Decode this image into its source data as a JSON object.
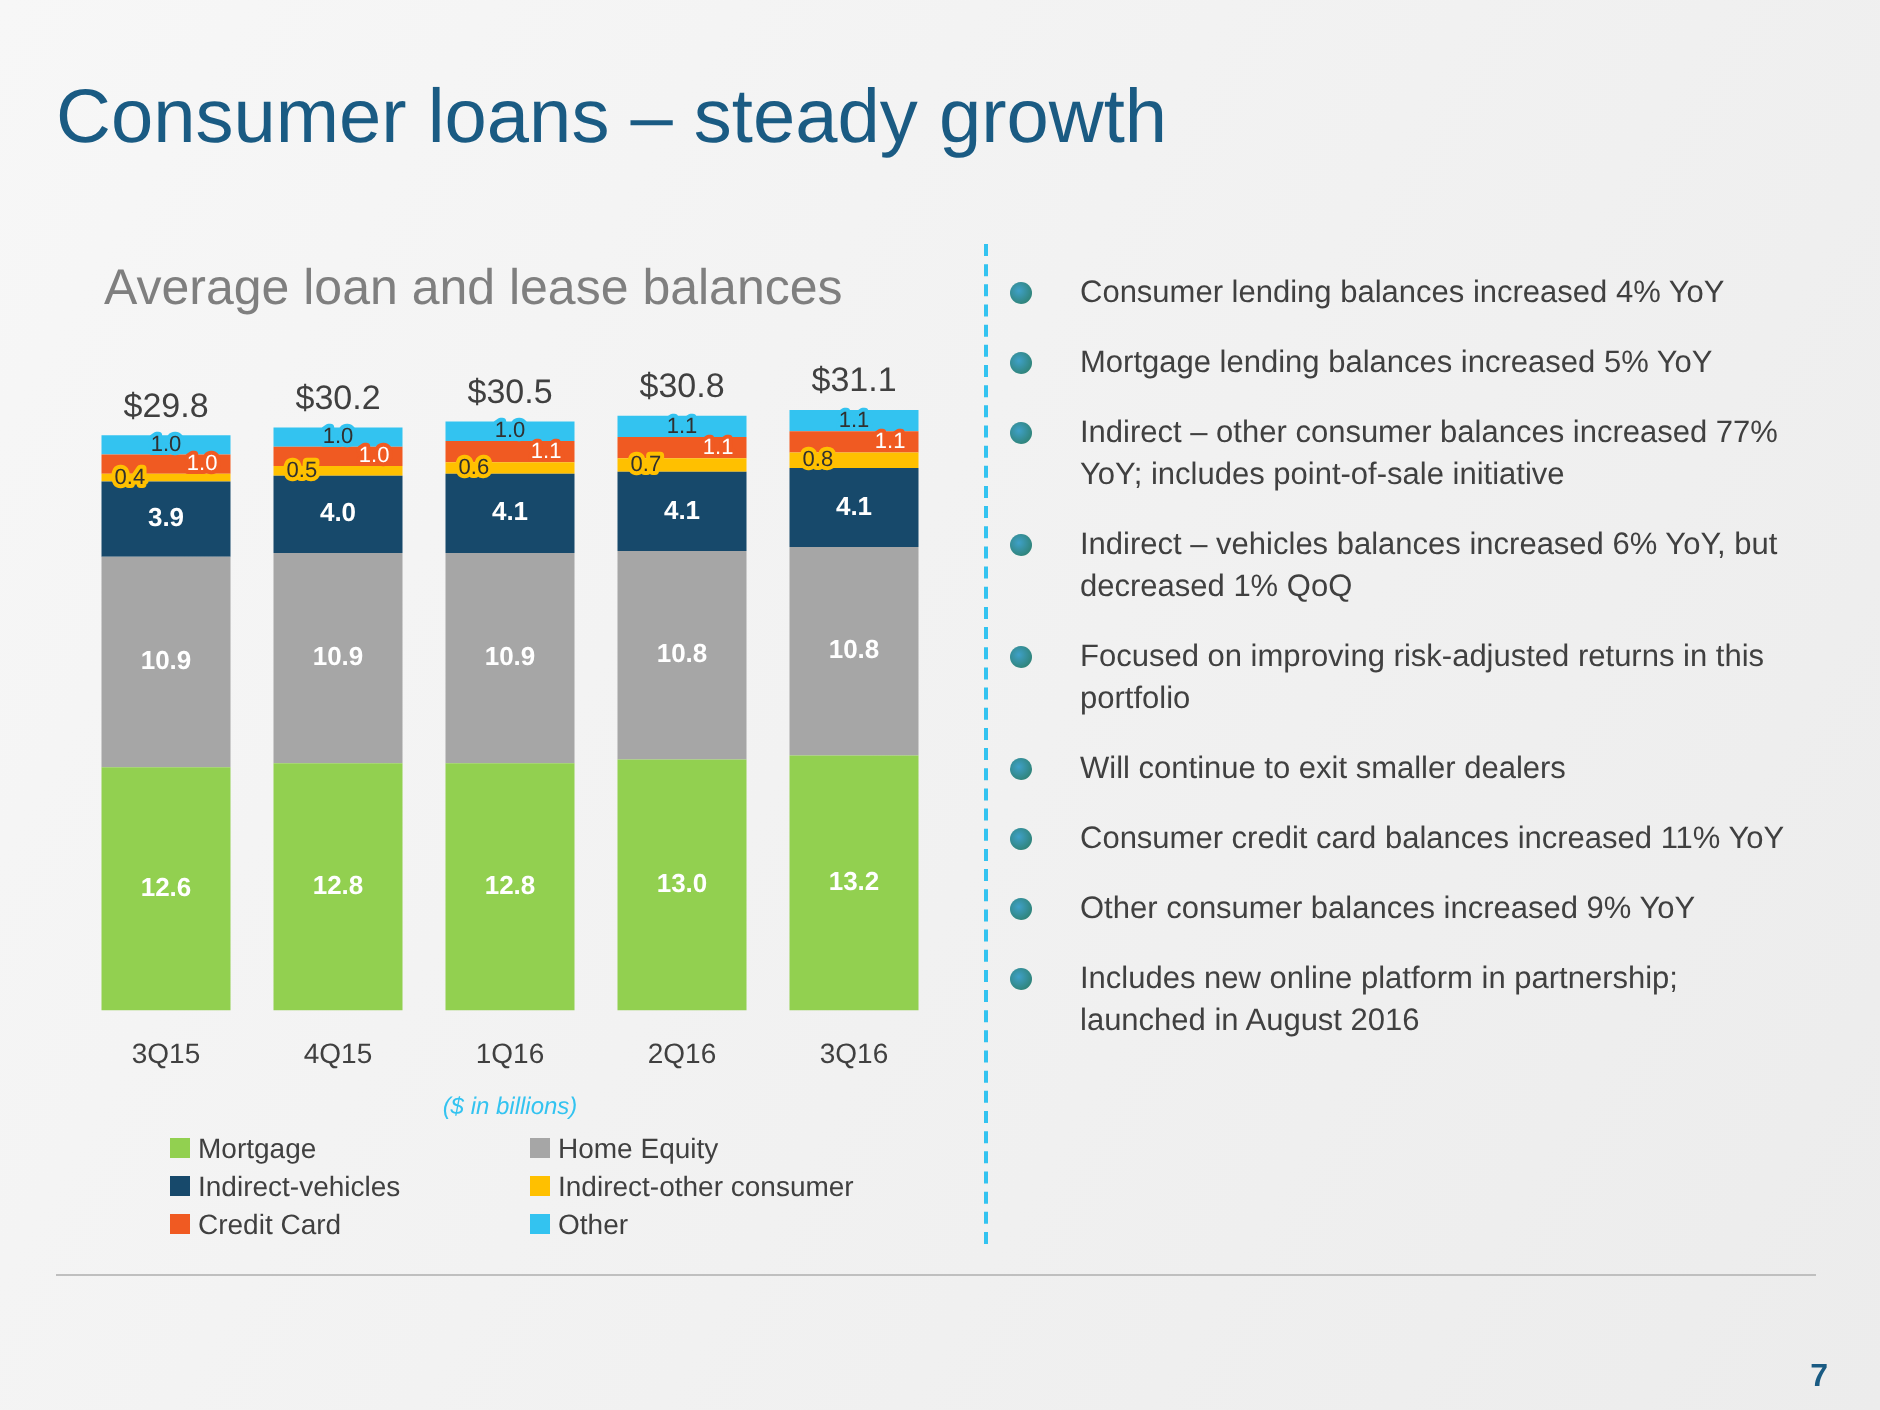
{
  "chart_data": {
    "type": "bar",
    "title": "Consumer loans – steady growth",
    "subtitle": "Average loan and lease balances",
    "stacked": true,
    "grid": false,
    "legend": "bottom",
    "categories": [
      "3Q15",
      "4Q15",
      "1Q16",
      "2Q16",
      "3Q16"
    ],
    "series": [
      {
        "name": "Mortgage",
        "color": "#92d050",
        "values": [
          12.6,
          12.8,
          12.8,
          13.0,
          13.2
        ],
        "value_labels": [
          "12.6",
          "12.8",
          "12.8",
          "13.0",
          "13.2"
        ]
      },
      {
        "name": "Home Equity",
        "color": "#a6a6a6",
        "values": [
          10.9,
          10.9,
          10.9,
          10.8,
          10.8
        ],
        "value_labels": [
          "10.9",
          "10.9",
          "10.9",
          "10.8",
          "10.8"
        ]
      },
      {
        "name": "Indirect-vehicles",
        "color": "#17496b",
        "values": [
          3.9,
          4.0,
          4.1,
          4.1,
          4.1
        ],
        "value_labels": [
          "3.9",
          "4.0",
          "4.1",
          "4.1",
          "4.1"
        ]
      },
      {
        "name": "Indirect-other consumer",
        "color": "#ffc000",
        "values": [
          0.4,
          0.5,
          0.6,
          0.7,
          0.8
        ],
        "value_labels": [
          "0.4",
          "0.5",
          "0.6",
          "0.7",
          "0.8"
        ]
      },
      {
        "name": "Credit Card",
        "color": "#f05a22",
        "values": [
          1.0,
          1.0,
          1.1,
          1.1,
          1.1
        ],
        "value_labels": [
          "1.0",
          "1.0",
          "1.1",
          "1.1",
          "1.1"
        ]
      },
      {
        "name": "Other",
        "color": "#33c3f0",
        "values": [
          1.0,
          1.0,
          1.0,
          1.1,
          1.1
        ],
        "value_labels": [
          "1.0",
          "1.0",
          "1.0",
          "1.1",
          "1.1"
        ]
      }
    ],
    "totals": [
      "$29.8",
      "$30.2",
      "$30.5",
      "$30.8",
      "$31.1"
    ],
    "annotations": [
      "($ in billions)",
      "Consumer lending balances increased 4% YoY",
      "Mortgage lending balances increased 5% YoY",
      "Indirect – other consumer balances increased 77% YoY; includes point-of-sale initiative",
      "Indirect – vehicles balances increased 6% YoY, but decreased 1% QoQ",
      "Focused on improving risk-adjusted returns in this portfolio",
      "Will continue to exit smaller dealers",
      "Consumer credit card balances increased 11% YoY",
      "Other consumer balances increased 9% YoY",
      "Includes new online platform in partnership; launched in August 2016",
      "7"
    ]
  }
}
